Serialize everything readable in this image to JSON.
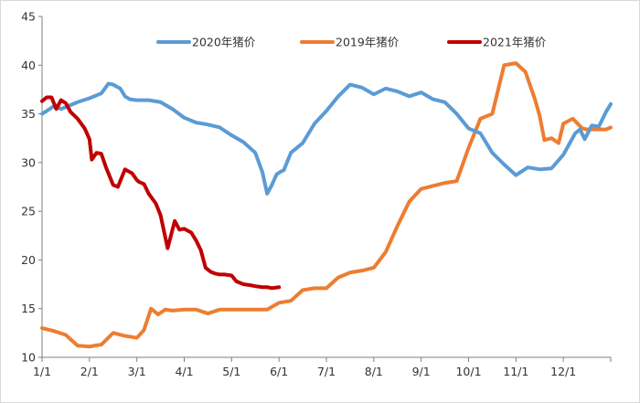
{
  "chart_data": {
    "type": "line",
    "title": "",
    "xlabel": "",
    "ylabel": "",
    "ylim": [
      10,
      45
    ],
    "y_ticks": [
      "10",
      "15",
      "20",
      "25",
      "30",
      "35",
      "40",
      "45"
    ],
    "x_range": [
      0,
      12
    ],
    "x_ticks": [
      "1/1",
      "2/1",
      "3/1",
      "4/1",
      "5/1",
      "6/1",
      "7/1",
      "8/1",
      "9/1",
      "10/1",
      "11/1",
      "12/1"
    ],
    "grid": false,
    "legend_position": "top",
    "series": [
      {
        "name": "2020年猪价",
        "color": "#5B9BD5",
        "x": [
          0,
          0.1,
          0.25,
          0.4,
          0.5,
          0.6,
          0.75,
          1.0,
          1.25,
          1.4,
          1.5,
          1.65,
          1.75,
          1.85,
          2.0,
          2.25,
          2.5,
          2.75,
          3.0,
          3.25,
          3.5,
          3.75,
          4.0,
          4.25,
          4.5,
          4.65,
          4.75,
          4.85,
          4.95,
          5.05,
          5.1,
          5.25,
          5.5,
          5.75,
          6.0,
          6.25,
          6.5,
          6.75,
          7.0,
          7.25,
          7.5,
          7.75,
          8.0,
          8.25,
          8.5,
          8.75,
          9.0,
          9.25,
          9.5,
          9.75,
          10.0,
          10.25,
          10.5,
          10.75,
          11.0,
          11.25,
          11.35,
          11.45,
          11.6,
          11.75,
          11.9,
          12.0
        ],
        "values": [
          35.0,
          35.3,
          35.8,
          35.5,
          35.7,
          35.9,
          36.2,
          36.6,
          37.1,
          38.1,
          38.0,
          37.6,
          36.8,
          36.5,
          36.4,
          36.4,
          36.2,
          35.5,
          34.6,
          34.1,
          33.9,
          33.6,
          32.8,
          32.1,
          31.0,
          29.0,
          26.8,
          27.7,
          28.8,
          29.1,
          29.2,
          31.0,
          32.0,
          34.0,
          35.3,
          36.8,
          38.0,
          37.7,
          37.0,
          37.6,
          37.3,
          36.8,
          37.2,
          36.5,
          36.2,
          35.0,
          33.5,
          33.0,
          31.0,
          29.8,
          28.7,
          29.5,
          29.3,
          29.4,
          30.8,
          33.0,
          33.4,
          32.4,
          33.8,
          33.7,
          35.2,
          36.0
        ]
      },
      {
        "name": "2019年猪价",
        "color": "#ED7D31",
        "x": [
          0,
          0.25,
          0.5,
          0.75,
          1.0,
          1.25,
          1.5,
          1.75,
          2.0,
          2.15,
          2.3,
          2.45,
          2.6,
          2.75,
          3.0,
          3.25,
          3.5,
          3.75,
          4.0,
          4.25,
          4.5,
          4.75,
          5.0,
          5.25,
          5.5,
          5.75,
          6.0,
          6.25,
          6.5,
          6.75,
          7.0,
          7.25,
          7.5,
          7.75,
          8.0,
          8.25,
          8.5,
          8.75,
          9.0,
          9.25,
          9.5,
          9.75,
          10.0,
          10.2,
          10.4,
          10.5,
          10.6,
          10.75,
          10.9,
          11.0,
          11.2,
          11.4,
          11.5,
          11.75,
          11.9,
          12.0
        ],
        "values": [
          13.0,
          12.7,
          12.3,
          11.2,
          11.1,
          11.3,
          12.5,
          12.2,
          12.0,
          12.8,
          15.0,
          14.4,
          14.9,
          14.8,
          14.9,
          14.9,
          14.5,
          14.9,
          14.9,
          14.9,
          14.9,
          14.9,
          15.6,
          15.8,
          16.9,
          17.1,
          17.1,
          18.2,
          18.7,
          18.9,
          19.2,
          20.8,
          23.5,
          26.0,
          27.3,
          27.6,
          27.9,
          28.1,
          31.5,
          34.5,
          35.0,
          40.0,
          40.2,
          39.3,
          36.5,
          34.8,
          32.3,
          32.5,
          32.0,
          34.0,
          34.5,
          33.5,
          33.4,
          33.4,
          33.4,
          33.6
        ]
      },
      {
        "name": "2021年猪价",
        "color": "#C00000",
        "x": [
          0,
          0.1,
          0.2,
          0.3,
          0.4,
          0.5,
          0.6,
          0.75,
          0.9,
          1.0,
          1.05,
          1.15,
          1.25,
          1.35,
          1.5,
          1.6,
          1.75,
          1.9,
          2.0,
          2.05,
          2.15,
          2.25,
          2.4,
          2.5,
          2.65,
          2.8,
          2.9,
          3.0,
          3.15,
          3.25,
          3.35,
          3.45,
          3.55,
          3.65,
          3.75,
          3.85,
          4.0,
          4.1,
          4.25,
          4.4,
          4.5,
          4.65,
          4.75,
          4.85,
          5.0
        ],
        "values": [
          36.3,
          36.7,
          36.7,
          35.5,
          36.4,
          36.1,
          35.2,
          34.5,
          33.5,
          32.4,
          30.3,
          31.0,
          30.9,
          29.5,
          27.7,
          27.5,
          29.3,
          28.9,
          28.2,
          28.0,
          27.8,
          26.8,
          25.8,
          24.6,
          21.2,
          24.0,
          23.1,
          23.2,
          22.8,
          22.0,
          21.0,
          19.2,
          18.8,
          18.6,
          18.5,
          18.5,
          18.4,
          17.8,
          17.5,
          17.4,
          17.3,
          17.2,
          17.2,
          17.1,
          17.2
        ]
      }
    ]
  }
}
